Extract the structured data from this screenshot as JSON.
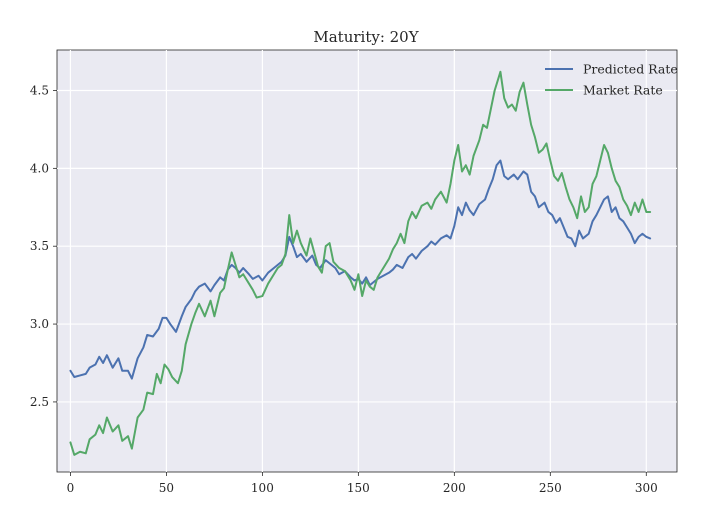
{
  "chart_data": {
    "type": "line",
    "title": "Maturity: 20Y",
    "xlabel": "",
    "ylabel": "",
    "xlim": [
      -7,
      316
    ],
    "ylim": [
      2.05,
      4.76
    ],
    "xticks": [
      0,
      50,
      100,
      150,
      200,
      250,
      300
    ],
    "yticks": [
      2.5,
      3.0,
      3.5,
      4.0,
      4.5
    ],
    "xtick_labels": [
      "0",
      "50",
      "100",
      "150",
      "200",
      "250",
      "300"
    ],
    "ytick_labels": [
      "2.5",
      "3.0",
      "3.5",
      "4.0",
      "4.5"
    ],
    "grid": true,
    "legend_position": "top-right",
    "background_color": "#eaeaf2",
    "series": [
      {
        "name": "Predicted Rate",
        "color": "#4c72b0",
        "anchors": [
          [
            0,
            2.7
          ],
          [
            2,
            2.66
          ],
          [
            5,
            2.67
          ],
          [
            8,
            2.68
          ],
          [
            10,
            2.72
          ],
          [
            13,
            2.74
          ],
          [
            15,
            2.79
          ],
          [
            17,
            2.75
          ],
          [
            19,
            2.8
          ],
          [
            22,
            2.72
          ],
          [
            25,
            2.78
          ],
          [
            27,
            2.7
          ],
          [
            30,
            2.7
          ],
          [
            32,
            2.65
          ],
          [
            35,
            2.78
          ],
          [
            38,
            2.85
          ],
          [
            40,
            2.93
          ],
          [
            43,
            2.92
          ],
          [
            46,
            2.97
          ],
          [
            48,
            3.04
          ],
          [
            50,
            3.04
          ],
          [
            52,
            3.0
          ],
          [
            55,
            2.95
          ],
          [
            58,
            3.05
          ],
          [
            60,
            3.11
          ],
          [
            63,
            3.16
          ],
          [
            65,
            3.21
          ],
          [
            67,
            3.24
          ],
          [
            70,
            3.26
          ],
          [
            73,
            3.21
          ],
          [
            75,
            3.25
          ],
          [
            78,
            3.3
          ],
          [
            80,
            3.28
          ],
          [
            82,
            3.35
          ],
          [
            84,
            3.38
          ],
          [
            86,
            3.36
          ],
          [
            88,
            3.33
          ],
          [
            90,
            3.36
          ],
          [
            93,
            3.32
          ],
          [
            95,
            3.29
          ],
          [
            98,
            3.31
          ],
          [
            100,
            3.28
          ],
          [
            103,
            3.33
          ],
          [
            106,
            3.36
          ],
          [
            108,
            3.38
          ],
          [
            110,
            3.4
          ],
          [
            112,
            3.44
          ],
          [
            114,
            3.56
          ],
          [
            116,
            3.5
          ],
          [
            118,
            3.43
          ],
          [
            120,
            3.45
          ],
          [
            123,
            3.4
          ],
          [
            126,
            3.44
          ],
          [
            128,
            3.38
          ],
          [
            130,
            3.36
          ],
          [
            133,
            3.41
          ],
          [
            136,
            3.38
          ],
          [
            138,
            3.36
          ],
          [
            140,
            3.32
          ],
          [
            143,
            3.34
          ],
          [
            146,
            3.3
          ],
          [
            148,
            3.28
          ],
          [
            150,
            3.29
          ],
          [
            152,
            3.26
          ],
          [
            154,
            3.3
          ],
          [
            156,
            3.25
          ],
          [
            158,
            3.27
          ],
          [
            160,
            3.29
          ],
          [
            163,
            3.31
          ],
          [
            166,
            3.33
          ],
          [
            168,
            3.35
          ],
          [
            170,
            3.38
          ],
          [
            173,
            3.36
          ],
          [
            176,
            3.43
          ],
          [
            178,
            3.45
          ],
          [
            180,
            3.42
          ],
          [
            183,
            3.47
          ],
          [
            186,
            3.5
          ],
          [
            188,
            3.53
          ],
          [
            190,
            3.51
          ],
          [
            193,
            3.55
          ],
          [
            196,
            3.57
          ],
          [
            198,
            3.55
          ],
          [
            200,
            3.63
          ],
          [
            202,
            3.75
          ],
          [
            204,
            3.7
          ],
          [
            206,
            3.78
          ],
          [
            208,
            3.73
          ],
          [
            210,
            3.7
          ],
          [
            213,
            3.77
          ],
          [
            216,
            3.8
          ],
          [
            218,
            3.87
          ],
          [
            220,
            3.93
          ],
          [
            222,
            4.02
          ],
          [
            224,
            4.05
          ],
          [
            226,
            3.95
          ],
          [
            228,
            3.93
          ],
          [
            231,
            3.96
          ],
          [
            233,
            3.93
          ],
          [
            236,
            3.98
          ],
          [
            238,
            3.96
          ],
          [
            240,
            3.85
          ],
          [
            242,
            3.82
          ],
          [
            244,
            3.75
          ],
          [
            247,
            3.78
          ],
          [
            249,
            3.72
          ],
          [
            251,
            3.7
          ],
          [
            253,
            3.65
          ],
          [
            255,
            3.68
          ],
          [
            257,
            3.62
          ],
          [
            259,
            3.56
          ],
          [
            261,
            3.55
          ],
          [
            263,
            3.5
          ],
          [
            265,
            3.6
          ],
          [
            267,
            3.55
          ],
          [
            270,
            3.58
          ],
          [
            272,
            3.66
          ],
          [
            274,
            3.7
          ],
          [
            276,
            3.75
          ],
          [
            278,
            3.8
          ],
          [
            280,
            3.82
          ],
          [
            282,
            3.72
          ],
          [
            284,
            3.75
          ],
          [
            286,
            3.68
          ],
          [
            288,
            3.66
          ],
          [
            290,
            3.62
          ],
          [
            292,
            3.58
          ],
          [
            294,
            3.52
          ],
          [
            296,
            3.56
          ],
          [
            298,
            3.58
          ],
          [
            300,
            3.56
          ],
          [
            302,
            3.55
          ]
        ]
      },
      {
        "name": "Market Rate",
        "color": "#55a868",
        "anchors": [
          [
            0,
            2.24
          ],
          [
            2,
            2.16
          ],
          [
            5,
            2.18
          ],
          [
            8,
            2.17
          ],
          [
            10,
            2.26
          ],
          [
            13,
            2.29
          ],
          [
            15,
            2.35
          ],
          [
            17,
            2.3
          ],
          [
            19,
            2.4
          ],
          [
            22,
            2.31
          ],
          [
            25,
            2.35
          ],
          [
            27,
            2.25
          ],
          [
            30,
            2.28
          ],
          [
            32,
            2.2
          ],
          [
            35,
            2.4
          ],
          [
            38,
            2.45
          ],
          [
            40,
            2.56
          ],
          [
            43,
            2.55
          ],
          [
            45,
            2.68
          ],
          [
            47,
            2.62
          ],
          [
            49,
            2.74
          ],
          [
            51,
            2.71
          ],
          [
            53,
            2.66
          ],
          [
            56,
            2.62
          ],
          [
            58,
            2.7
          ],
          [
            60,
            2.87
          ],
          [
            63,
            3.0
          ],
          [
            65,
            3.07
          ],
          [
            67,
            3.13
          ],
          [
            70,
            3.05
          ],
          [
            73,
            3.15
          ],
          [
            75,
            3.05
          ],
          [
            78,
            3.2
          ],
          [
            80,
            3.23
          ],
          [
            82,
            3.35
          ],
          [
            84,
            3.46
          ],
          [
            86,
            3.38
          ],
          [
            88,
            3.3
          ],
          [
            90,
            3.32
          ],
          [
            93,
            3.26
          ],
          [
            95,
            3.22
          ],
          [
            97,
            3.17
          ],
          [
            100,
            3.18
          ],
          [
            103,
            3.26
          ],
          [
            106,
            3.32
          ],
          [
            108,
            3.36
          ],
          [
            110,
            3.38
          ],
          [
            112,
            3.45
          ],
          [
            114,
            3.7
          ],
          [
            116,
            3.52
          ],
          [
            118,
            3.6
          ],
          [
            120,
            3.52
          ],
          [
            123,
            3.44
          ],
          [
            125,
            3.55
          ],
          [
            127,
            3.46
          ],
          [
            129,
            3.37
          ],
          [
            131,
            3.33
          ],
          [
            133,
            3.5
          ],
          [
            135,
            3.52
          ],
          [
            137,
            3.4
          ],
          [
            140,
            3.36
          ],
          [
            143,
            3.34
          ],
          [
            146,
            3.28
          ],
          [
            148,
            3.22
          ],
          [
            150,
            3.32
          ],
          [
            152,
            3.18
          ],
          [
            154,
            3.28
          ],
          [
            156,
            3.24
          ],
          [
            158,
            3.22
          ],
          [
            160,
            3.3
          ],
          [
            163,
            3.36
          ],
          [
            166,
            3.42
          ],
          [
            168,
            3.48
          ],
          [
            170,
            3.52
          ],
          [
            172,
            3.58
          ],
          [
            174,
            3.52
          ],
          [
            176,
            3.66
          ],
          [
            178,
            3.72
          ],
          [
            180,
            3.68
          ],
          [
            183,
            3.76
          ],
          [
            186,
            3.78
          ],
          [
            188,
            3.74
          ],
          [
            190,
            3.8
          ],
          [
            193,
            3.85
          ],
          [
            196,
            3.78
          ],
          [
            198,
            3.9
          ],
          [
            200,
            4.05
          ],
          [
            202,
            4.15
          ],
          [
            204,
            3.98
          ],
          [
            206,
            4.02
          ],
          [
            208,
            3.96
          ],
          [
            210,
            4.08
          ],
          [
            213,
            4.18
          ],
          [
            215,
            4.28
          ],
          [
            217,
            4.26
          ],
          [
            219,
            4.38
          ],
          [
            221,
            4.5
          ],
          [
            223,
            4.58
          ],
          [
            224,
            4.62
          ],
          [
            226,
            4.45
          ],
          [
            228,
            4.39
          ],
          [
            230,
            4.41
          ],
          [
            232,
            4.37
          ],
          [
            234,
            4.49
          ],
          [
            236,
            4.55
          ],
          [
            238,
            4.41
          ],
          [
            240,
            4.28
          ],
          [
            242,
            4.2
          ],
          [
            244,
            4.1
          ],
          [
            246,
            4.12
          ],
          [
            248,
            4.16
          ],
          [
            250,
            4.05
          ],
          [
            252,
            3.95
          ],
          [
            254,
            3.92
          ],
          [
            256,
            3.97
          ],
          [
            258,
            3.88
          ],
          [
            260,
            3.8
          ],
          [
            262,
            3.75
          ],
          [
            264,
            3.68
          ],
          [
            266,
            3.82
          ],
          [
            268,
            3.72
          ],
          [
            270,
            3.75
          ],
          [
            272,
            3.9
          ],
          [
            274,
            3.95
          ],
          [
            276,
            4.05
          ],
          [
            278,
            4.15
          ],
          [
            280,
            4.1
          ],
          [
            282,
            4.0
          ],
          [
            284,
            3.92
          ],
          [
            286,
            3.88
          ],
          [
            288,
            3.8
          ],
          [
            290,
            3.76
          ],
          [
            292,
            3.7
          ],
          [
            294,
            3.78
          ],
          [
            296,
            3.72
          ],
          [
            298,
            3.8
          ],
          [
            300,
            3.72
          ],
          [
            302,
            3.72
          ]
        ]
      }
    ]
  }
}
